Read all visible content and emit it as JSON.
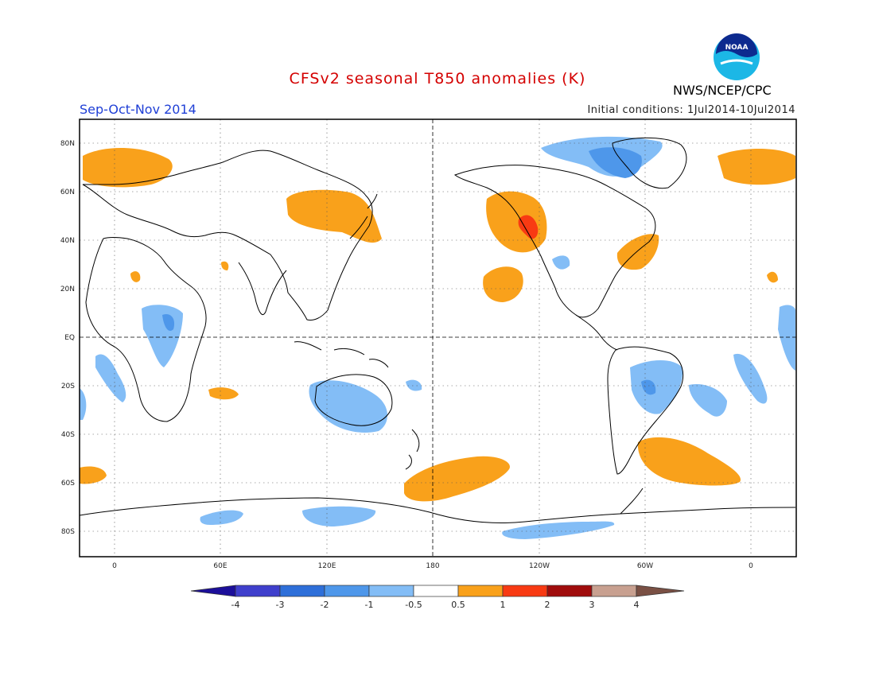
{
  "header": {
    "title": "CFSv2 seasonal T850 anomalies (K)",
    "season": "Sep-Oct-Nov 2014",
    "initial_conditions": "Initial conditions: 1Jul2014-10Jul2014",
    "agency": "NWS/NCEP/CPC",
    "logo_text": "NOAA"
  },
  "map": {
    "lat_labels": [
      "80N",
      "60N",
      "40N",
      "20N",
      "EQ",
      "20S",
      "40S",
      "60S",
      "80S"
    ],
    "lon_labels": [
      "0",
      "60E",
      "120E",
      "180",
      "120W",
      "60W",
      "0"
    ]
  },
  "colorbar": {
    "labels": [
      "-4",
      "-3",
      "-2",
      "-1",
      "-0.5",
      "0.5",
      "1",
      "2",
      "3",
      "4"
    ],
    "colors": [
      "#1c0f9a",
      "#3f3fcc",
      "#2e6fd9",
      "#4e97ea",
      "#83bdf6",
      "#ffffff",
      "#f9a11b",
      "#f83a13",
      "#a00c0c",
      "#c8a090",
      "#7a5044"
    ]
  }
}
